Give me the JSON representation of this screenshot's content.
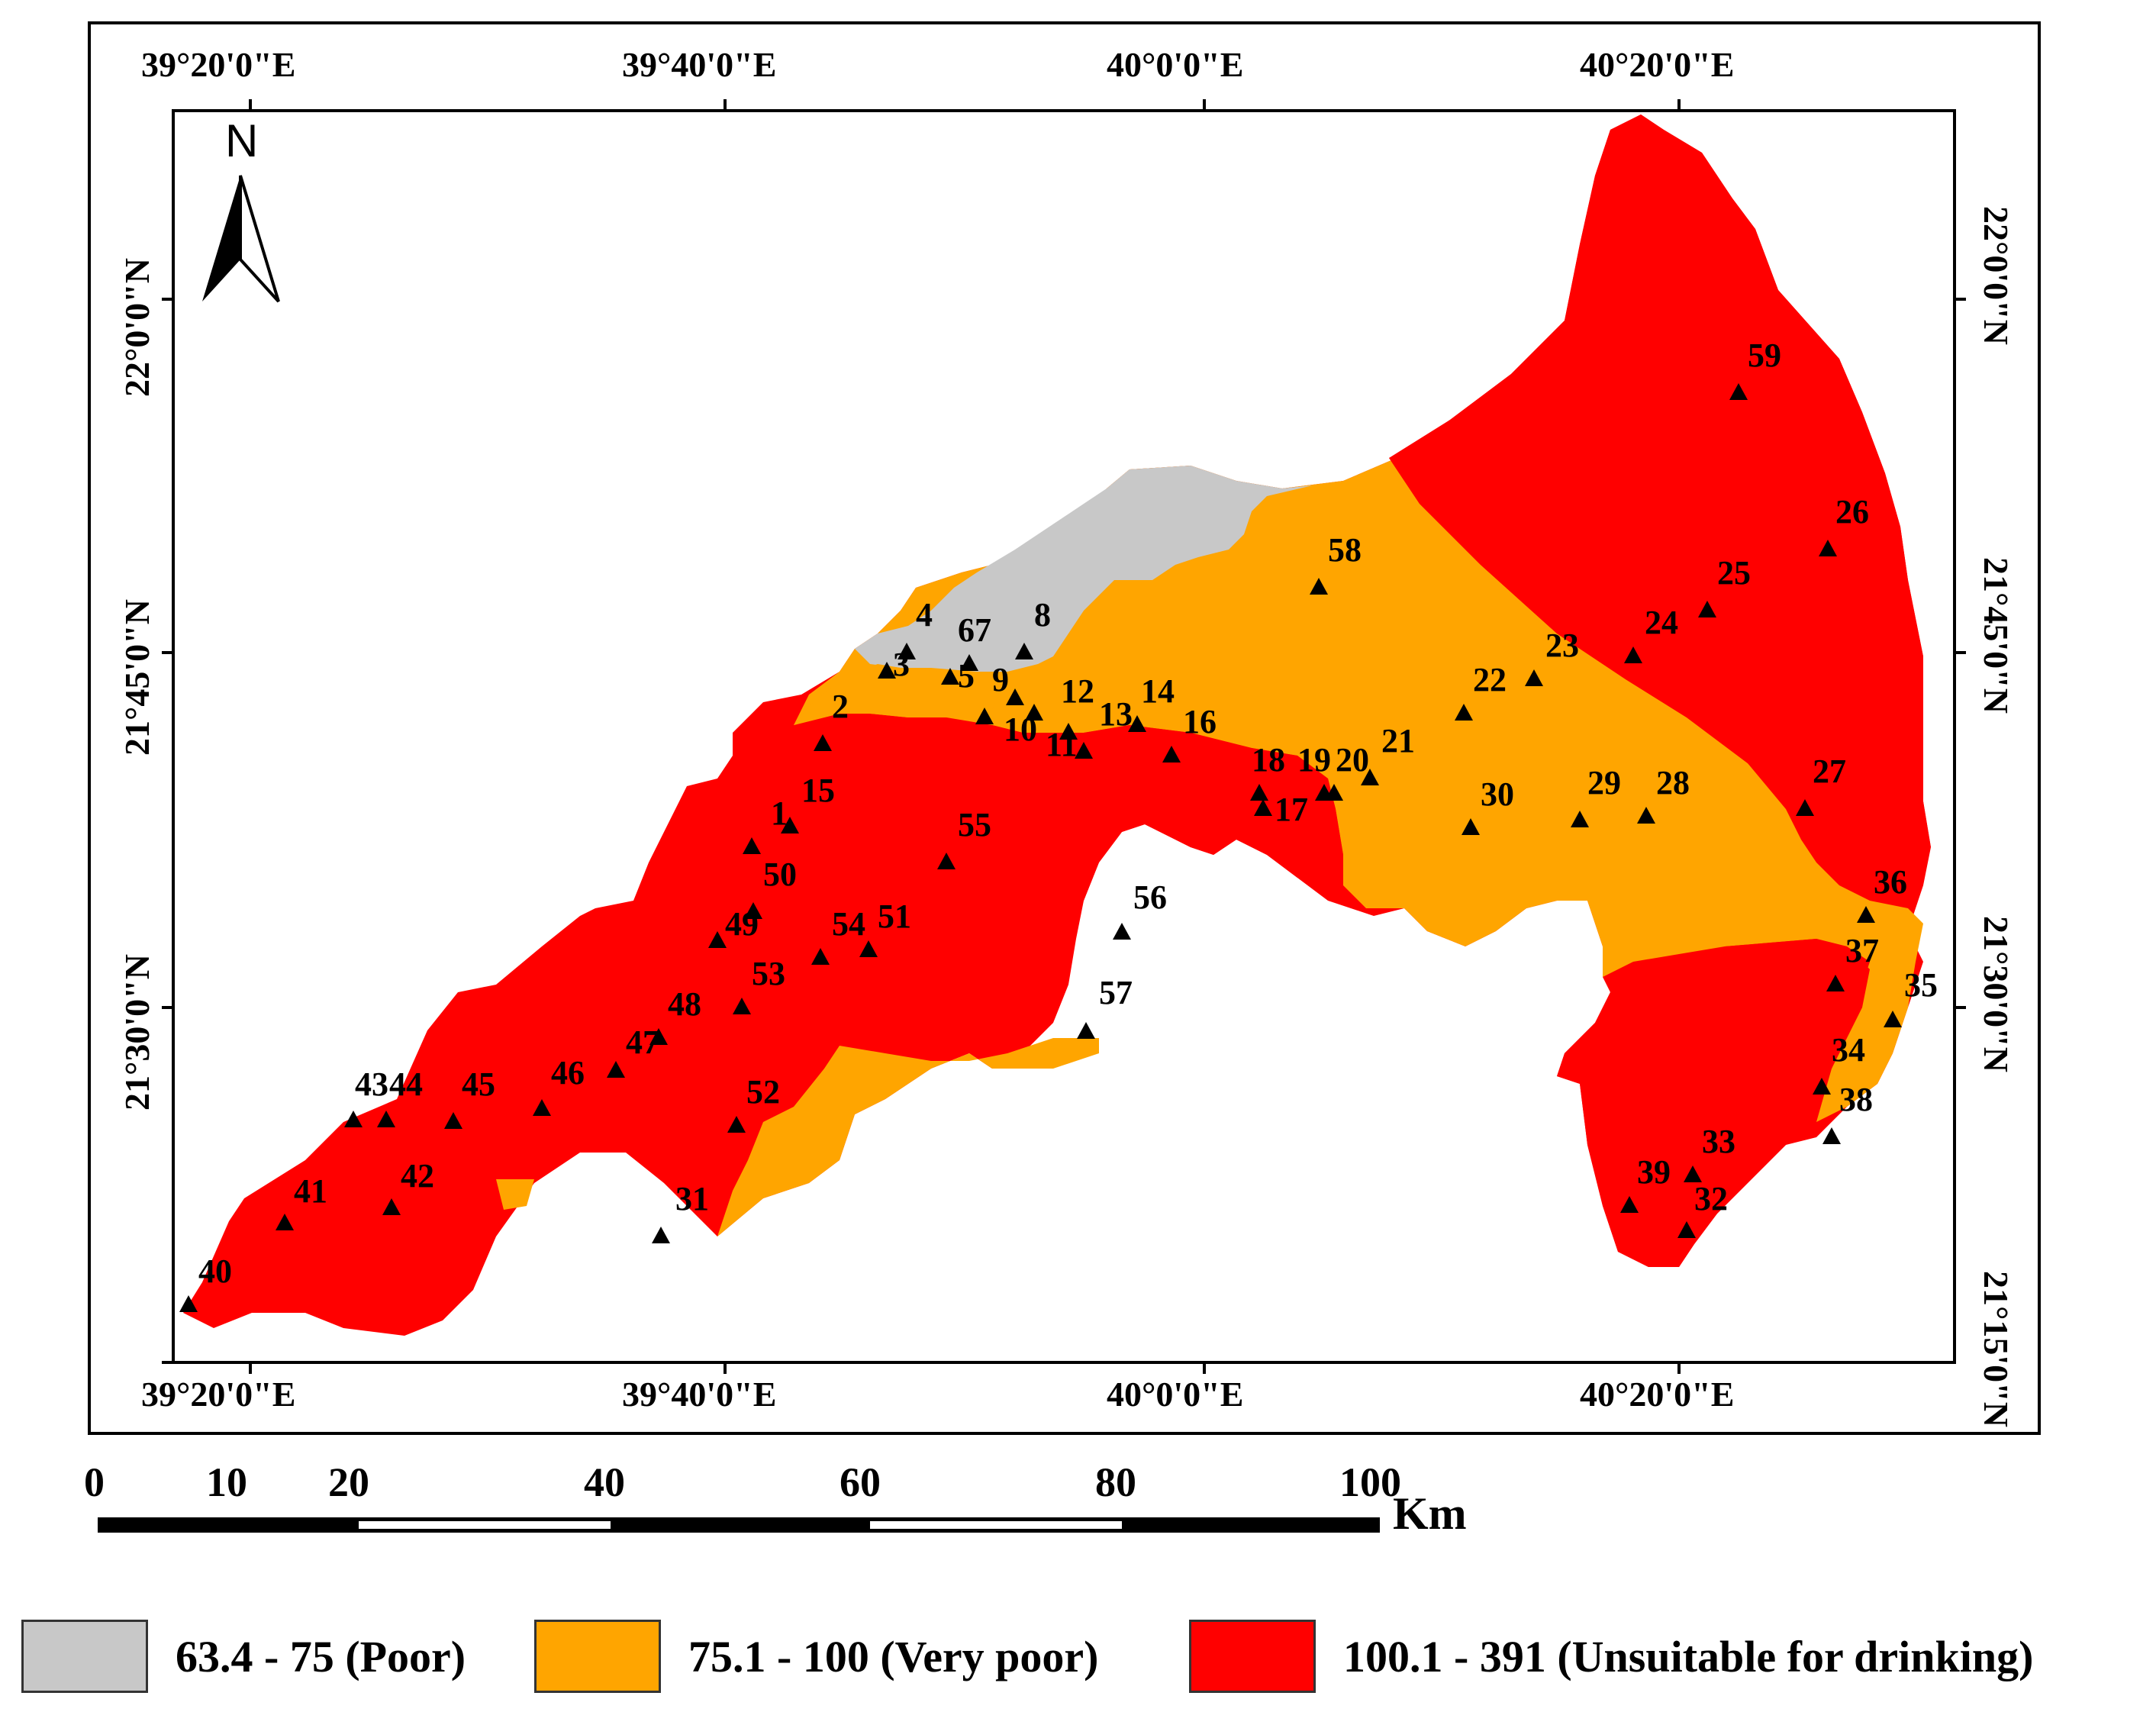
{
  "map": {
    "top_longitudes": [
      "39°20'0\"E",
      "39°40'0\"E",
      "40°0'0\"E",
      "40°20'0\"E"
    ],
    "bottom_longitudes": [
      "39°20'0\"E",
      "39°40'0\"E",
      "40°0'0\"E",
      "40°20'0\"E"
    ],
    "left_latitudes": [
      "22°0'0\"N",
      "21°45'0\"N",
      "21°30'0\"N"
    ],
    "right_latitudes": [
      "22°0'0\"N",
      "21°45'0\"N",
      "21°30'0\"N",
      "21°15'0\"N"
    ],
    "north_label": "N",
    "colors": {
      "poor": "#C8C8C8",
      "very_poor": "#FFA500",
      "unsuitable": "#FF0000"
    }
  },
  "scale_bar": {
    "ticks": [
      "0",
      "10",
      "20",
      "40",
      "60",
      "80",
      "100"
    ],
    "unit": "Km"
  },
  "stations": [
    {
      "id": "1"
    },
    {
      "id": "2"
    },
    {
      "id": "3"
    },
    {
      "id": "4"
    },
    {
      "id": "5"
    },
    {
      "id": "67"
    },
    {
      "id": "8"
    },
    {
      "id": "9"
    },
    {
      "id": "10"
    },
    {
      "id": "11"
    },
    {
      "id": "12"
    },
    {
      "id": "13"
    },
    {
      "id": "14"
    },
    {
      "id": "15"
    },
    {
      "id": "16"
    },
    {
      "id": "17"
    },
    {
      "id": "18"
    },
    {
      "id": "19"
    },
    {
      "id": "20"
    },
    {
      "id": "21"
    },
    {
      "id": "22"
    },
    {
      "id": "23"
    },
    {
      "id": "24"
    },
    {
      "id": "25"
    },
    {
      "id": "26"
    },
    {
      "id": "27"
    },
    {
      "id": "28"
    },
    {
      "id": "29"
    },
    {
      "id": "30"
    },
    {
      "id": "31"
    },
    {
      "id": "32"
    },
    {
      "id": "33"
    },
    {
      "id": "34"
    },
    {
      "id": "35"
    },
    {
      "id": "36"
    },
    {
      "id": "37"
    },
    {
      "id": "38"
    },
    {
      "id": "39"
    },
    {
      "id": "40"
    },
    {
      "id": "41"
    },
    {
      "id": "42"
    },
    {
      "id": "43"
    },
    {
      "id": "44"
    },
    {
      "id": "45"
    },
    {
      "id": "46"
    },
    {
      "id": "47"
    },
    {
      "id": "48"
    },
    {
      "id": "49"
    },
    {
      "id": "50"
    },
    {
      "id": "51"
    },
    {
      "id": "52"
    },
    {
      "id": "53"
    },
    {
      "id": "54"
    },
    {
      "id": "55"
    },
    {
      "id": "56"
    },
    {
      "id": "57"
    },
    {
      "id": "58"
    },
    {
      "id": "59"
    }
  ],
  "legend": [
    {
      "label": "63.4 - 75 (Poor)",
      "color": "#C8C8C8"
    },
    {
      "label": "75.1 - 100 (Very poor)",
      "color": "#FFA500"
    },
    {
      "label": "100.1 - 391 (Unsuitable for drinking)",
      "color": "#FF0000"
    }
  ]
}
